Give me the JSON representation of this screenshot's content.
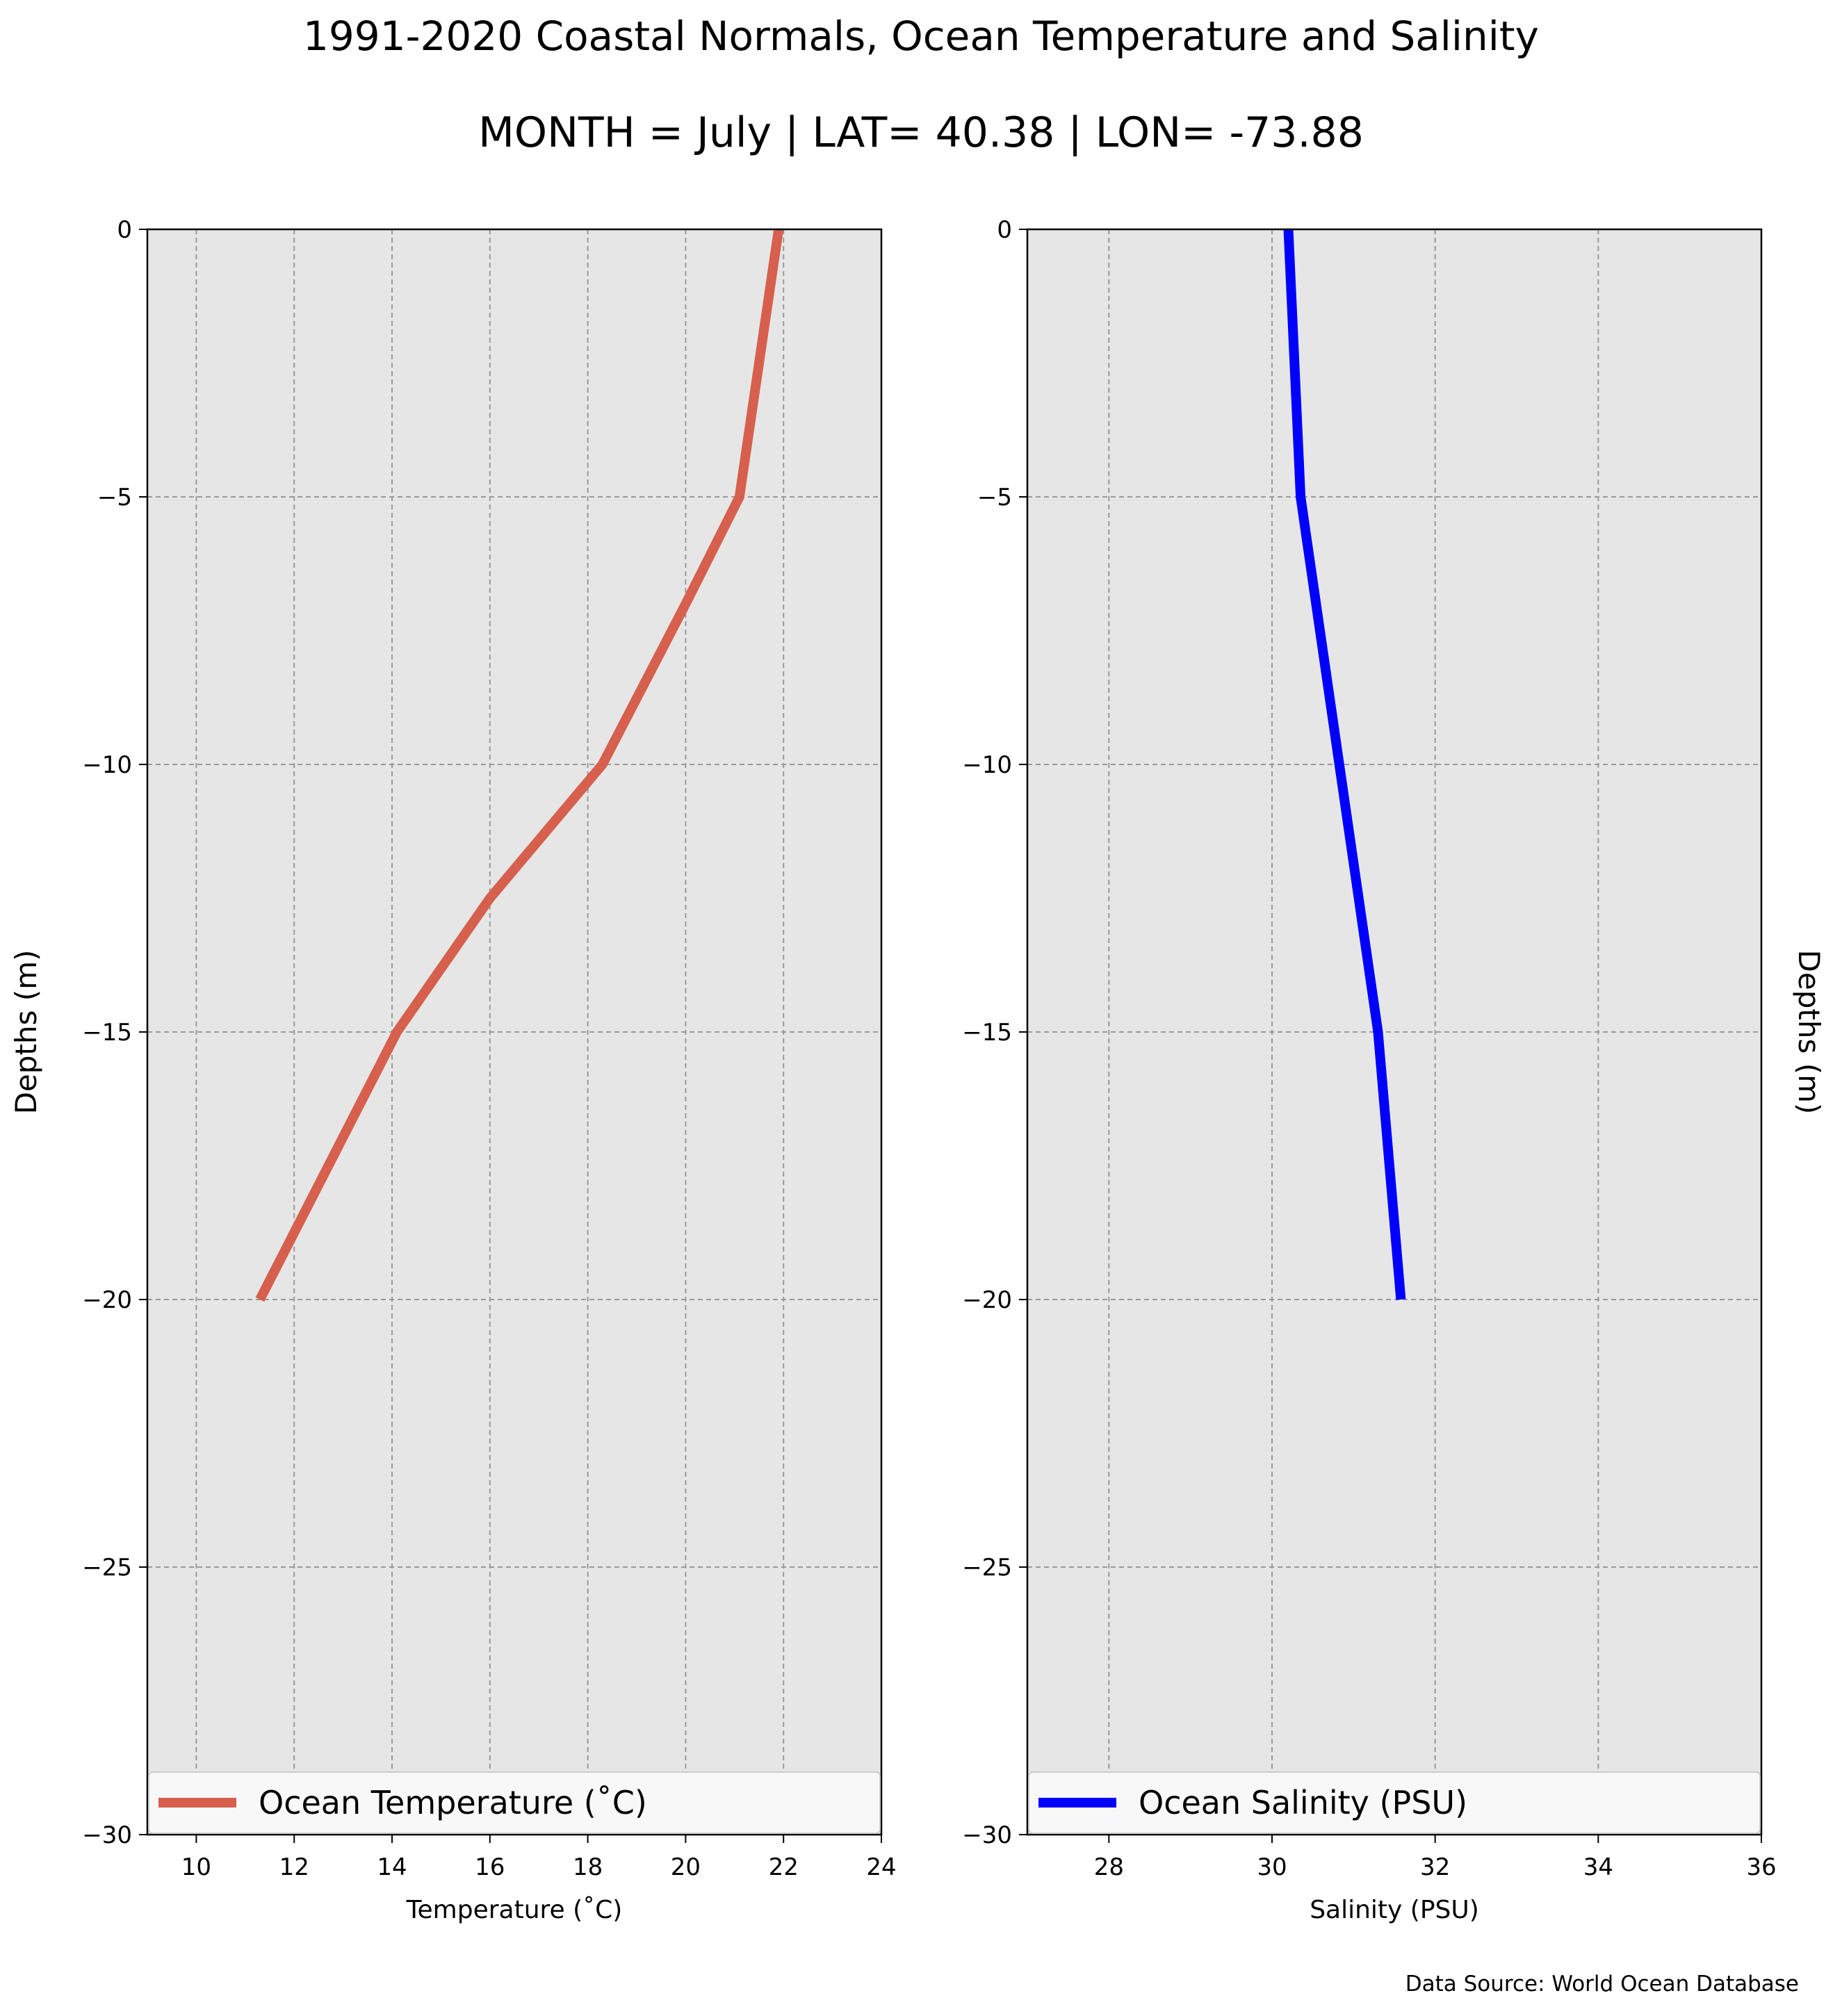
{
  "figure": {
    "title": "1991-2020 Coastal Normals, Ocean Temperature and Salinity",
    "subtitle": "MONTH = July | LAT= 40.38 | LON= -73.88",
    "source_note": "Data Source: World Ocean Database"
  },
  "colors": {
    "panel_background": "#e6e6e6",
    "grid": "#9a9a9a",
    "temperature_line": "#d6604d",
    "salinity_line": "#0000ff"
  },
  "chart_data": [
    {
      "type": "line",
      "series": [
        {
          "name": "Ocean Temperature ($^\\circ$C)",
          "legend_label": "Ocean Temperature (˚C)",
          "color": "#d6604d",
          "x": [
            21.9,
            21.1,
            20.0,
            18.3,
            16.0,
            14.1,
            11.3
          ],
          "y": [
            0,
            -5,
            -7,
            -10,
            -12.5,
            -15,
            -20
          ]
        }
      ],
      "xlabel": "Temperature (˚C)",
      "ylabel": "Depths (m)",
      "xlim": [
        9,
        24
      ],
      "ylim": [
        -30,
        0
      ],
      "xticks": [
        10,
        12,
        14,
        16,
        18,
        20,
        22,
        24
      ],
      "xtick_labels": [
        "10",
        "12",
        "14",
        "16",
        "18",
        "20",
        "22",
        "24"
      ],
      "yticks": [
        0,
        -5,
        -10,
        -15,
        -20,
        -25,
        -30
      ],
      "ytick_labels": [
        "0",
        "−5",
        "−10",
        "−15",
        "−20",
        "−25",
        "−30"
      ],
      "grid": true,
      "legend_position": "lower center"
    },
    {
      "type": "line",
      "series": [
        {
          "name": "Ocean Salinity (PSU)",
          "legend_label": "Ocean Salinity (PSU)",
          "color": "#0000ff",
          "x": [
            30.2,
            30.35,
            31.3,
            31.58
          ],
          "y": [
            0,
            -5,
            -15,
            -20
          ]
        }
      ],
      "xlabel": "Salinity (PSU)",
      "ylabel": "Depths (m)",
      "xlim": [
        27,
        36
      ],
      "ylim": [
        -30,
        0
      ],
      "xticks": [
        28,
        30,
        32,
        34,
        36
      ],
      "xtick_labels": [
        "28",
        "30",
        "32",
        "34",
        "36"
      ],
      "yticks": [
        0,
        -5,
        -10,
        -15,
        -20,
        -25,
        -30
      ],
      "ytick_labels": [
        "0",
        "−5",
        "−10",
        "−15",
        "−20",
        "−25",
        "−30"
      ],
      "grid": true,
      "legend_position": "lower center"
    }
  ]
}
